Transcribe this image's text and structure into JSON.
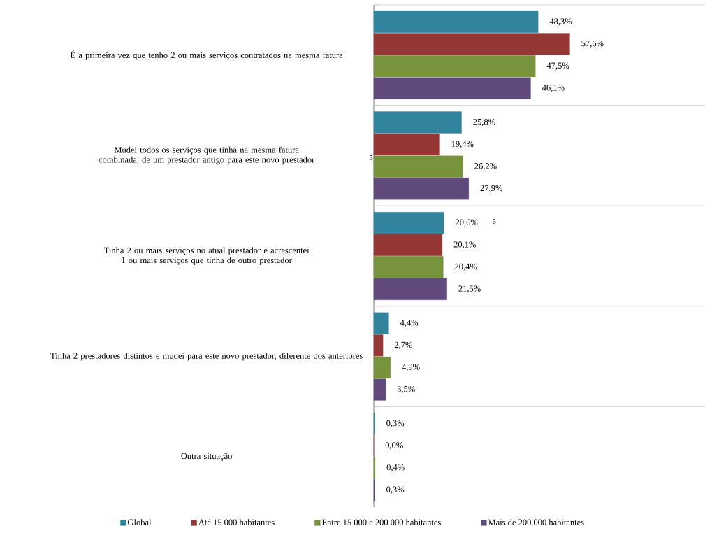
{
  "chart_data": {
    "type": "bar",
    "orientation": "horizontal",
    "categories": [
      "É a primeira vez que tenho 2 ou mais serviços contratados na mesma fatura",
      "Mudei todos os serviços que tinha na mesma fatura combinada, de um prestador antigo para este novo prestador",
      "Tinha 2 ou mais serviços no atual prestador e acrescentei 1 ou mais serviços que tinha de outro prestador",
      "Tinha 2 prestadores distintos e mudei para este novo prestador, diferente dos anteriores",
      "Outra situação"
    ],
    "series": [
      {
        "name": "Global",
        "color": "#31849b",
        "values": [
          48.3,
          25.8,
          20.6,
          4.4,
          0.3
        ],
        "value_labels": [
          "48,3%",
          "25,8%",
          "20,6%",
          "4,4%",
          "0,3%"
        ]
      },
      {
        "name": "Até 15 000 habitantes",
        "color": "#953735",
        "values": [
          57.6,
          19.4,
          20.1,
          2.7,
          0.0
        ],
        "value_labels": [
          "57,6%",
          "19,4%",
          "20,1%",
          "2,7%",
          "0,0%"
        ]
      },
      {
        "name": "Entre 15 000 e 200 000 habitantes",
        "color": "#77933c",
        "values": [
          47.5,
          26.2,
          20.4,
          4.9,
          0.4
        ],
        "value_labels": [
          "47,5%",
          "26,2%",
          "20,4%",
          "4,9%",
          "0,4%"
        ]
      },
      {
        "name": "Mais de 200 000 habitantes",
        "color": "#604a7b",
        "values": [
          46.1,
          27.9,
          21.5,
          3.5,
          0.3
        ],
        "value_labels": [
          "46,1%",
          "27,9%",
          "21,5%",
          "3,5%",
          "0,3%"
        ]
      }
    ],
    "annotations": [
      "5",
      "6"
    ],
    "grid": "y",
    "legend": "bottom"
  }
}
